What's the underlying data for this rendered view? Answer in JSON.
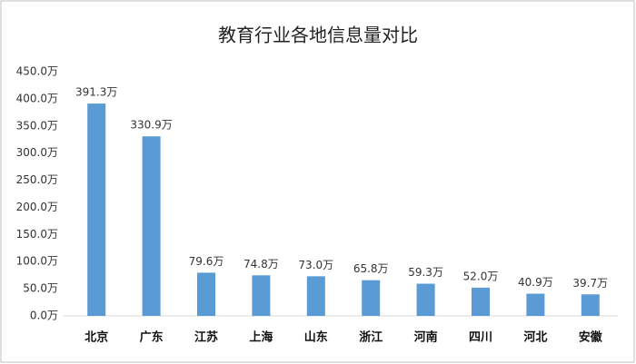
{
  "chart_data": {
    "type": "bar",
    "title": "教育行业各地信息量对比",
    "categories": [
      "北京",
      "广东",
      "江苏",
      "上海",
      "山东",
      "浙江",
      "河南",
      "四川",
      "河北",
      "安徽"
    ],
    "values": [
      391.3,
      330.9,
      79.6,
      74.8,
      73.0,
      65.8,
      59.3,
      52.0,
      40.9,
      39.7
    ],
    "value_labels": [
      "391.3万",
      "330.9万",
      "79.6万",
      "74.8万",
      "73.0万",
      "65.8万",
      "59.3万",
      "52.0万",
      "40.9万",
      "39.7万"
    ],
    "color": "#5b9bd5",
    "ylim": [
      0,
      450
    ],
    "yticks": [
      {
        "value": 0,
        "label": "0.0万"
      },
      {
        "value": 50,
        "label": "50.0万"
      },
      {
        "value": 100,
        "label": "100.0万"
      },
      {
        "value": 150,
        "label": "150.0万"
      },
      {
        "value": 200,
        "label": "200.0万"
      },
      {
        "value": 250,
        "label": "250.0万"
      },
      {
        "value": 300,
        "label": "300.0万"
      },
      {
        "value": 350,
        "label": "350.0万"
      },
      {
        "value": 400,
        "label": "400.0万"
      },
      {
        "value": 450,
        "label": "450.0万"
      }
    ],
    "grid": false
  }
}
